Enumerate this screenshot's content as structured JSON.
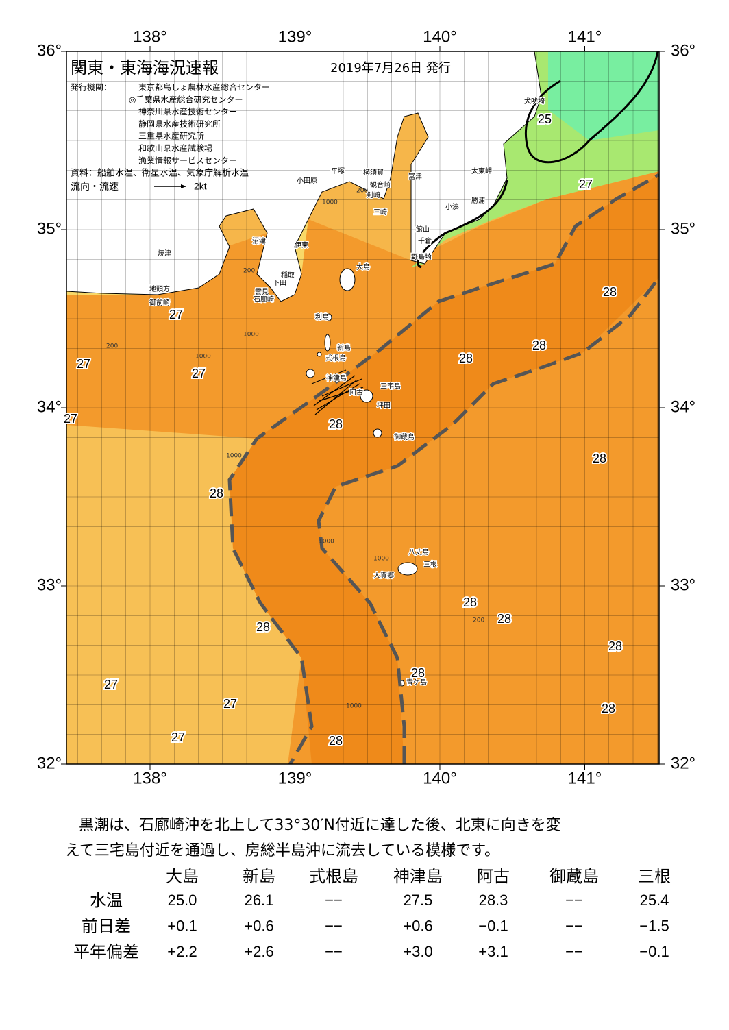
{
  "header": {
    "title": "関東・東海海況速報",
    "date": "2019年7月26日 発行",
    "publisher_label": "発行機関：",
    "publishers": [
      "東京都島しょ農林水産総合センター",
      "◎千葉県水産総合研究センター",
      "神奈川県水産技術センター",
      "静岡県水産技術研究所",
      "三重県水産研究所",
      "和歌山県水産試験場",
      "漁業情報サービスセンター"
    ],
    "source": "資料：船舶水温、衛星水温、気象庁解析水温",
    "legend_label": "流向・流速",
    "legend_speed": "2kt"
  },
  "map": {
    "lon_ticks": [
      {
        "value": 138,
        "label": "138°"
      },
      {
        "value": 139,
        "label": "139°"
      },
      {
        "value": 140,
        "label": "140°"
      },
      {
        "value": 141,
        "label": "141°"
      }
    ],
    "lat_ticks": [
      {
        "value": 36,
        "label": "36°"
      },
      {
        "value": 35,
        "label": "35°"
      },
      {
        "value": 34,
        "label": "34°"
      },
      {
        "value": 33,
        "label": "33°"
      },
      {
        "value": 32,
        "label": "32°"
      }
    ],
    "temperature_labels": [
      25,
      27,
      28,
      28,
      28,
      27,
      27,
      27,
      27,
      28,
      28,
      28,
      28,
      28,
      28,
      28,
      28,
      27,
      27,
      28,
      27,
      28
    ],
    "place_names": [
      "犬吠埼",
      "太東岬",
      "勝浦",
      "小湊",
      "館山",
      "千倉",
      "野島埼",
      "富津",
      "横須賀",
      "観音崎",
      "剣崎",
      "三崎",
      "平塚",
      "小田原",
      "沼津",
      "伊東",
      "稲取",
      "下田",
      "雲見",
      "石廊崎",
      "焼津",
      "地頭方",
      "御前崎",
      "大島",
      "利島",
      "新島",
      "式根島",
      "神津島",
      "三宅島",
      "阿古",
      "坪田",
      "御蔵島",
      "八丈島",
      "三根",
      "大賀郷",
      "青ケ島"
    ],
    "depth_labels": [
      200,
      1000,
      200,
      1000,
      200,
      1000,
      1000,
      1000,
      1000,
      200,
      1000
    ]
  },
  "summary": [
    "黒潮は、石廊崎沖を北上して33°30′N付近に達した後、北東に向きを変",
    "えて三宅島付近を通過し、房総半島沖に流去している模様です。"
  ],
  "table": {
    "columns": [
      "大島",
      "新島",
      "式根島",
      "神津島",
      "阿古",
      "御蔵島",
      "三根"
    ],
    "rows": [
      {
        "label": "水温",
        "values": [
          "25.0",
          "26.1",
          "−−",
          "27.5",
          "28.3",
          "−−",
          "25.4"
        ]
      },
      {
        "label": "前日差",
        "values": [
          "+0.1",
          "+0.6",
          "−−",
          "+0.6",
          "−0.1",
          "−−",
          "−1.5"
        ]
      },
      {
        "label": "平年偏差",
        "values": [
          "+2.2",
          "+2.6",
          "−−",
          "+3.0",
          "+3.1",
          "−−",
          "−0.1"
        ]
      }
    ]
  }
}
